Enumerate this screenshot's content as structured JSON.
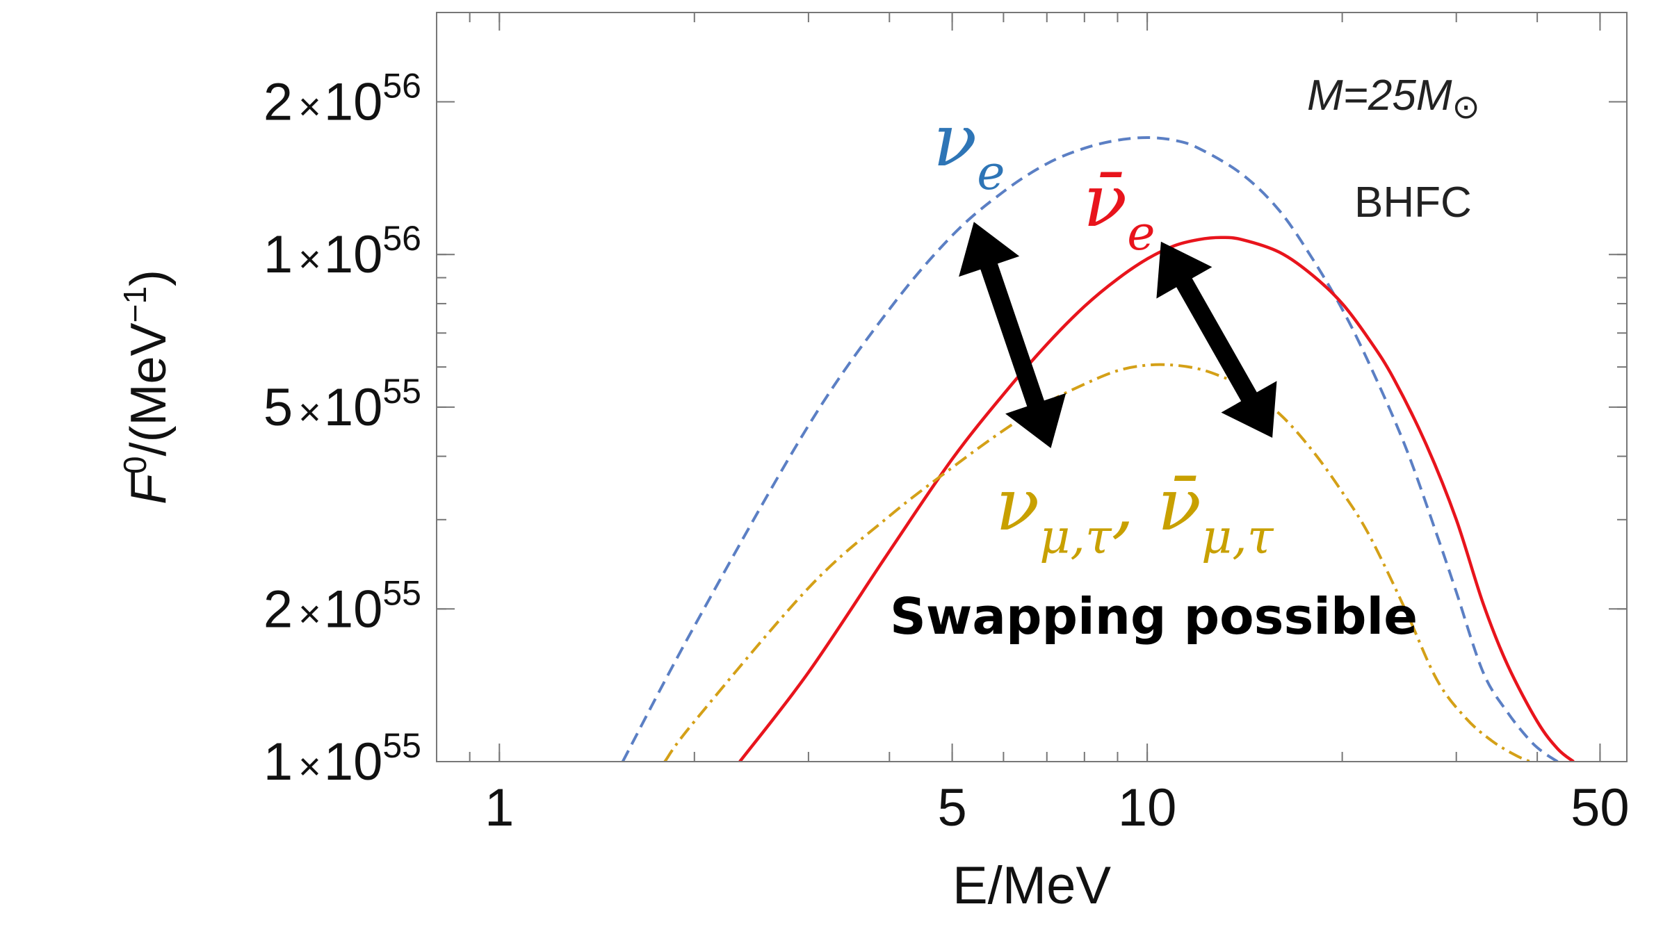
{
  "chart_data": {
    "type": "line",
    "xscale": "log",
    "yscale": "log",
    "xlabel": "E/MeV",
    "ylabel_base": "F",
    "ylabel_sup": "0",
    "ylabel_unit_open": "/(MeV",
    "ylabel_unit_sup": "−1",
    "ylabel_unit_close": ")",
    "xlim": [
      0.8,
      55
    ],
    "ylim": [
      1e+55,
      3e+56
    ],
    "xticks": [
      {
        "value": 1,
        "label": "1"
      },
      {
        "value": 5,
        "label": "5"
      },
      {
        "value": 10,
        "label": "10"
      },
      {
        "value": 50,
        "label": "50"
      }
    ],
    "yticks": [
      {
        "value": 1e+55,
        "mantissa": "1",
        "times": "×",
        "base": "10",
        "exp": "55"
      },
      {
        "value": 2e+55,
        "mantissa": "2",
        "times": "×",
        "base": "10",
        "exp": "55"
      },
      {
        "value": 5e+55,
        "mantissa": "5",
        "times": "×",
        "base": "10",
        "exp": "55"
      },
      {
        "value": 1e+56,
        "mantissa": "1",
        "times": "×",
        "base": "10",
        "exp": "56"
      },
      {
        "value": 2e+56,
        "mantissa": "2",
        "times": "×",
        "base": "10",
        "exp": "56"
      }
    ],
    "series": [
      {
        "name": "nu_e",
        "label_main": "ν",
        "label_sub": "e",
        "color": "#5b7fc4",
        "label_color": "#2e75b6",
        "dash": "18,10",
        "x": [
          1.55,
          2,
          3,
          4,
          5,
          6,
          7,
          8,
          9,
          10,
          11,
          12,
          14,
          16,
          18,
          20,
          22,
          25,
          28,
          30,
          33,
          36,
          39,
          41,
          43
        ],
        "y": [
          1e+55,
          1.85e+55,
          4.6e+55,
          7.8e+55,
          1.09e+56,
          1.33e+56,
          1.51e+56,
          1.62e+56,
          1.68e+56,
          1.7e+56,
          1.68e+56,
          1.62e+56,
          1.44e+56,
          1.22e+56,
          9.8e+55,
          7.8e+55,
          6.1e+55,
          4.2e+55,
          2.8e+55,
          2.16e+55,
          1.5e+55,
          1.25e+55,
          1.1e+55,
          1.04e+55,
          1e+55
        ]
      },
      {
        "name": "nubar_e",
        "label_main": "ν̄",
        "label_sub": "e",
        "color": "#e8141c",
        "label_color": "#e8141c",
        "dash": "",
        "x": [
          2.35,
          3,
          4,
          5,
          6,
          7,
          8,
          9,
          10,
          11,
          12,
          13,
          14,
          16,
          18,
          20,
          22,
          24,
          27,
          30,
          33,
          36,
          40,
          43,
          45.5
        ],
        "y": [
          1e+55,
          1.5e+55,
          2.6e+55,
          3.95e+55,
          5.3e+55,
          6.65e+55,
          7.9e+55,
          8.95e+55,
          9.8e+55,
          1.04e+56,
          1.07e+56,
          1.08e+56,
          1.07e+56,
          1.01e+56,
          9.1e+55,
          8e+55,
          6.8e+55,
          5.7e+55,
          4.2e+55,
          3e+55,
          2.05e+55,
          1.55e+55,
          1.2e+55,
          1.06e+55,
          1e+55
        ]
      },
      {
        "name": "nu_mutau",
        "label_main": "ν",
        "label_sub": "μ,τ",
        "label_sep": ", ",
        "label_main2": "ν̄",
        "label_sub2": "μ,τ",
        "color": "#d4a017",
        "label_color": "#c8a000",
        "dash": "20,8,4,8",
        "x": [
          1.8,
          2,
          3,
          4,
          5,
          6,
          7,
          8,
          9,
          10,
          11,
          12,
          13,
          14,
          16,
          18,
          20,
          22,
          25,
          28,
          31,
          34,
          37,
          39
        ],
        "y": [
          1e+55,
          1.2e+55,
          2.2e+55,
          3.05e+55,
          3.8e+55,
          4.5e+55,
          5.1e+55,
          5.55e+55,
          5.9e+55,
          6.05e+55,
          6.05e+55,
          5.95e+55,
          5.75e+55,
          5.5e+55,
          4.85e+55,
          4.1e+55,
          3.4e+55,
          2.8e+55,
          2e+55,
          1.45e+55,
          1.22e+55,
          1.1e+55,
          1.03e+55,
          1e+55
        ]
      }
    ],
    "arrows": [
      {
        "from": [
          5.4,
          1.16e+56
        ],
        "to": [
          7.1,
          4.15e+55
        ]
      },
      {
        "from": [
          10.5,
          1.06e+56
        ],
        "to": [
          15.6,
          4.35e+55
        ]
      }
    ],
    "annotations": {
      "mass_label_prefix": "M=25M",
      "mass_label_symbol": "⊙",
      "model": "BHFC",
      "swap_text": "Swapping possible"
    }
  }
}
